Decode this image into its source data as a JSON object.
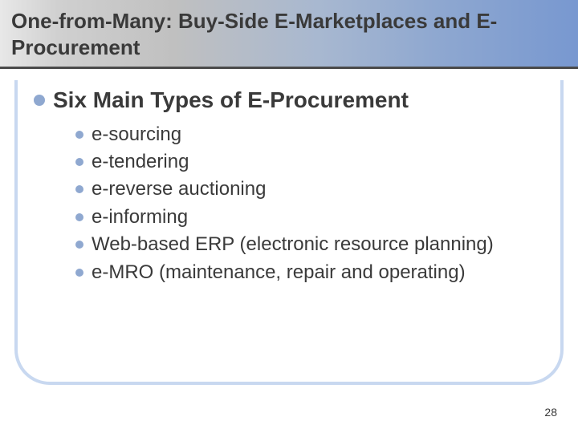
{
  "title_line": "One-from-Many: Buy-Side E-Marketplaces and E-Procurement",
  "main_bullet": "Six Main Types of E-Procurement",
  "sub_bullets": [
    "e-sourcing",
    "e-tendering",
    "e-reverse auctioning",
    "e-informing",
    "Web-based ERP (electronic resource planning)",
    "e-MRO (maintenance, repair and operating)"
  ],
  "page_number": "28",
  "colors": {
    "bullet_dot": "#8fa8d0",
    "text": "#3a3a3a",
    "frame_border": "#c8d8f0",
    "title_underline": "#4a4a4a",
    "title_gradient_start": "#e8e8e8",
    "title_gradient_end": "#7898d0"
  },
  "typography": {
    "title_fontsize": 26,
    "main_bullet_fontsize": 28,
    "sub_bullet_fontsize": 24,
    "page_number_fontsize": 14,
    "font_family": "Arial"
  }
}
